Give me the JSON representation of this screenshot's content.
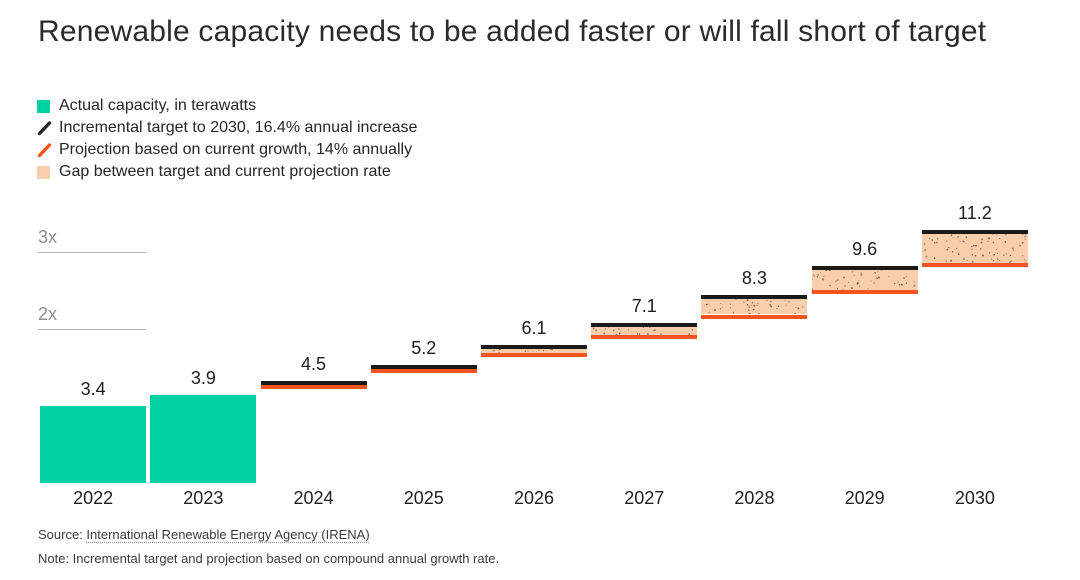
{
  "title": "Renewable capacity needs to be added faster or will fall short of target",
  "legend": [
    {
      "icon": "green-swatch-icon",
      "shape": "square",
      "color": "#00d1a2",
      "label": "Actual capacity, in terawatts"
    },
    {
      "icon": "black-slash-icon",
      "shape": "slash",
      "color": "#262626",
      "label": "Incremental target to 2030, 16.4% annual increase"
    },
    {
      "icon": "orange-slash-icon",
      "shape": "slash",
      "color": "#f4551f",
      "label": "Projection based on current growth, 14% annually"
    },
    {
      "icon": "peach-swatch-icon",
      "shape": "square",
      "color": "#f8cead",
      "label": "Gap between target and current projection rate"
    }
  ],
  "footer": {
    "source_prefix": "Source: ",
    "source_link": "International Renewable Energy Agency (IRENA)",
    "note": "Note: Incremental target and projection based on compound annual growth rate."
  },
  "chart_data": {
    "type": "bar",
    "title": "Renewable capacity needs to be added faster or will fall short of target",
    "unit": "terawatts",
    "categories": [
      "2022",
      "2023",
      "2024",
      "2025",
      "2026",
      "2027",
      "2028",
      "2029",
      "2030"
    ],
    "series": [
      {
        "name": "Actual capacity, in terawatts",
        "values": [
          3.4,
          3.9,
          null,
          null,
          null,
          null,
          null,
          null,
          null
        ]
      },
      {
        "name": "Incremental target to 2030, 16.4% annual increase",
        "values": [
          null,
          null,
          4.5,
          5.2,
          6.1,
          7.1,
          8.3,
          9.6,
          11.2
        ]
      },
      {
        "name": "Projection based on current growth, 14% annually",
        "values": [
          null,
          null,
          4.4,
          5.1,
          5.8,
          6.6,
          7.5,
          8.6,
          9.8
        ]
      }
    ],
    "data_labels": [
      "3.4",
      "3.9",
      "4.5",
      "5.2",
      "6.1",
      "7.1",
      "8.3",
      "9.6",
      "11.2"
    ],
    "y_gridlines": [
      {
        "label": "2x",
        "value": 6.8
      },
      {
        "label": "3x",
        "value": 10.2
      }
    ],
    "ylim": [
      0,
      13
    ],
    "grid": "partial-left-ticks-only",
    "legend_position": "top-left",
    "xlabel": "",
    "ylabel": "",
    "colors": {
      "actual_bar": "#00d1a2",
      "target_line": "#1a1a1a",
      "projection_line": "#f4551f",
      "gap_fill": "#f8cead",
      "gap_speckle": "#63503f",
      "gridline": "#b0b0b0",
      "grid_label": "#8d8d8d",
      "value_label": "#1d1d1d",
      "axis_label": "#1f1f1f"
    }
  }
}
